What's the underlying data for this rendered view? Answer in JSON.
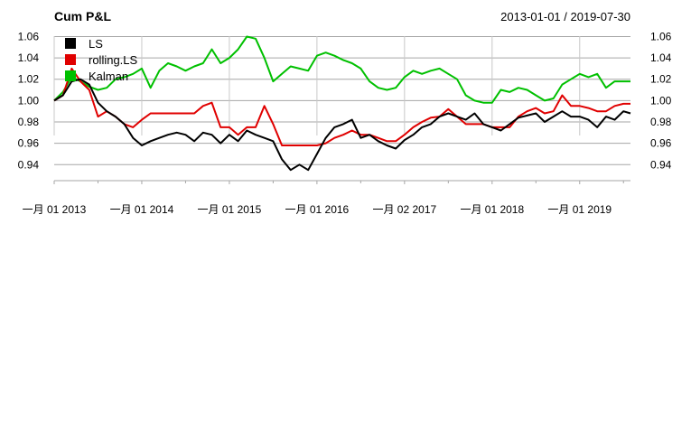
{
  "chart_data": {
    "type": "line",
    "title": "Cum P&L",
    "date_range": "2013-01-01 / 2019-07-30",
    "xlabel": "",
    "ylabel": "",
    "x_tick_labels": [
      "一月 01 2013",
      "一月 01 2014",
      "一月 01 2015",
      "一月 01 2016",
      "一月 02 2017",
      "一月 01 2018",
      "一月 01 2019"
    ],
    "y_ticks": [
      "0.94",
      "0.96",
      "0.98",
      "1.00",
      "1.02",
      "1.04",
      "1.06"
    ],
    "ylim": [
      0.925,
      1.068
    ],
    "xlim": [
      2013.0,
      2019.58
    ],
    "grid": true,
    "legend_position": "top-left",
    "x": [
      2013.0,
      2013.1,
      2013.2,
      2013.3,
      2013.4,
      2013.5,
      2013.6,
      2013.7,
      2013.8,
      2013.9,
      2014.0,
      2014.1,
      2014.2,
      2014.3,
      2014.4,
      2014.5,
      2014.6,
      2014.7,
      2014.8,
      2014.9,
      2015.0,
      2015.1,
      2015.2,
      2015.3,
      2015.4,
      2015.5,
      2015.6,
      2015.7,
      2015.8,
      2015.9,
      2016.0,
      2016.1,
      2016.2,
      2016.3,
      2016.4,
      2016.5,
      2016.6,
      2016.7,
      2016.8,
      2016.9,
      2017.0,
      2017.1,
      2017.2,
      2017.3,
      2017.4,
      2017.5,
      2017.6,
      2017.7,
      2017.8,
      2017.9,
      2018.0,
      2018.1,
      2018.2,
      2018.3,
      2018.4,
      2018.5,
      2018.6,
      2018.7,
      2018.8,
      2018.9,
      2019.0,
      2019.1,
      2019.2,
      2019.3,
      2019.4,
      2019.5,
      2019.58
    ],
    "series": [
      {
        "name": "LS",
        "color": "#000000",
        "values": [
          1.0,
          1.005,
          1.018,
          1.02,
          1.015,
          0.998,
          0.99,
          0.985,
          0.978,
          0.965,
          0.958,
          0.962,
          0.965,
          0.968,
          0.97,
          0.968,
          0.962,
          0.97,
          0.968,
          0.96,
          0.968,
          0.962,
          0.972,
          0.968,
          0.965,
          0.962,
          0.945,
          0.935,
          0.94,
          0.935,
          0.95,
          0.965,
          0.975,
          0.978,
          0.982,
          0.965,
          0.968,
          0.962,
          0.958,
          0.955,
          0.963,
          0.968,
          0.975,
          0.978,
          0.985,
          0.988,
          0.985,
          0.982,
          0.988,
          0.978,
          0.975,
          0.972,
          0.978,
          0.984,
          0.986,
          0.988,
          0.98,
          0.985,
          0.99,
          0.985,
          0.985,
          0.982,
          0.975,
          0.985,
          0.982,
          0.99,
          0.988
        ]
      },
      {
        "name": "rolling.LS",
        "color": "#e00000",
        "values": [
          1.0,
          1.005,
          1.03,
          1.018,
          1.01,
          0.985,
          0.99,
          0.985,
          0.978,
          0.975,
          0.982,
          0.988,
          0.988,
          0.988,
          0.988,
          0.988,
          0.988,
          0.995,
          0.998,
          0.975,
          0.975,
          0.968,
          0.975,
          0.975,
          0.995,
          0.978,
          0.958,
          0.958,
          0.958,
          0.958,
          0.958,
          0.96,
          0.965,
          0.968,
          0.972,
          0.968,
          0.968,
          0.965,
          0.962,
          0.962,
          0.968,
          0.975,
          0.98,
          0.984,
          0.985,
          0.992,
          0.985,
          0.978,
          0.978,
          0.978,
          0.975,
          0.975,
          0.975,
          0.985,
          0.99,
          0.993,
          0.988,
          0.99,
          1.005,
          0.995,
          0.995,
          0.993,
          0.99,
          0.99,
          0.995,
          0.997,
          0.997
        ]
      },
      {
        "name": "Kalman",
        "color": "#00c000",
        "values": [
          1.0,
          1.008,
          1.022,
          1.018,
          1.013,
          1.01,
          1.012,
          1.02,
          1.022,
          1.025,
          1.03,
          1.012,
          1.028,
          1.035,
          1.032,
          1.028,
          1.032,
          1.035,
          1.048,
          1.035,
          1.04,
          1.048,
          1.06,
          1.058,
          1.04,
          1.018,
          1.025,
          1.032,
          1.03,
          1.028,
          1.042,
          1.045,
          1.042,
          1.038,
          1.035,
          1.03,
          1.018,
          1.012,
          1.01,
          1.012,
          1.022,
          1.028,
          1.025,
          1.028,
          1.03,
          1.025,
          1.02,
          1.005,
          1.0,
          0.998,
          0.998,
          1.01,
          1.008,
          1.012,
          1.01,
          1.005,
          1.0,
          1.002,
          1.015,
          1.02,
          1.025,
          1.022,
          1.025,
          1.012,
          1.018,
          1.018,
          1.018
        ]
      }
    ]
  }
}
